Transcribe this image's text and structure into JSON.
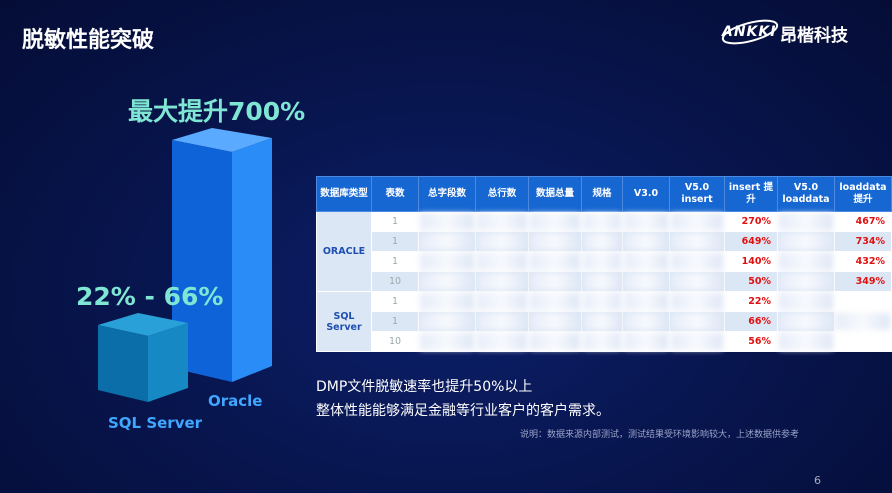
{
  "header": {
    "title": "脱敏性能突破",
    "logo": "ANKKI",
    "company": "昂楷科技"
  },
  "figure": {
    "oracle_callout": "最大提升700%",
    "sqlserver_callout": "22% - 66%",
    "oracle_label": "Oracle",
    "sqlserver_label": "SQL Server"
  },
  "table": {
    "columns": [
      "数据库类型",
      "表数",
      "总字段数",
      "总行数",
      "数据总量",
      "规格",
      "V3.0",
      "V5.0 insert",
      "insert 提升",
      "V5.0 loaddata",
      "loaddata 提升"
    ],
    "groups": [
      {
        "name": "ORACLE",
        "rows": [
          {
            "tables": 1,
            "insert_gain": "270%",
            "loaddata_gain": "467%"
          },
          {
            "tables": 1,
            "insert_gain": "649%",
            "loaddata_gain": "734%"
          },
          {
            "tables": 1,
            "insert_gain": "140%",
            "loaddata_gain": "432%"
          },
          {
            "tables": 10,
            "insert_gain": "50%",
            "loaddata_gain": "349%"
          }
        ]
      },
      {
        "name": "SQL Server",
        "rows": [
          {
            "tables": 1,
            "insert_gain": "22%"
          },
          {
            "tables": 1,
            "insert_gain": "66%"
          },
          {
            "tables": 10,
            "insert_gain": "56%"
          }
        ]
      }
    ]
  },
  "body": {
    "lines": [
      "DMP文件脱敏速率也提升50%以上",
      "整体性能能够满足金融等行业客户的客户需求。"
    ],
    "note": "说明：数据来源内部测试，测试结果受环境影响较大，上述数据供参考"
  },
  "page_number": 6
}
